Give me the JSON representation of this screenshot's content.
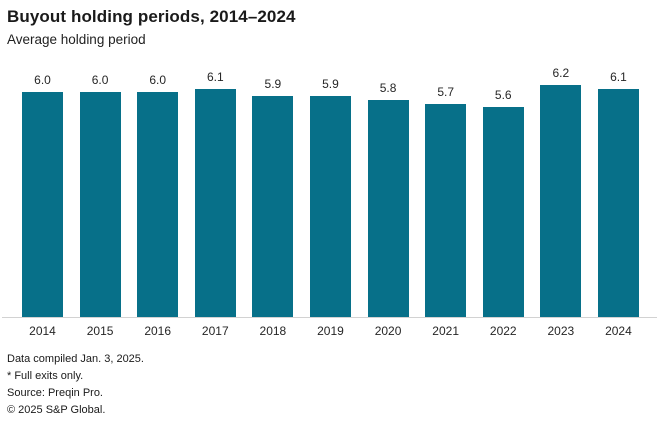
{
  "header": {
    "title": "Buyout holding periods, 2014–2024",
    "subtitle": "Average holding period"
  },
  "chart_data": {
    "type": "bar",
    "title": "Buyout holding periods, 2014–2024",
    "subtitle": "Average holding period",
    "categories": [
      "2014",
      "2015",
      "2016",
      "2017",
      "2018",
      "2019",
      "2020",
      "2021",
      "2022",
      "2023",
      "2024"
    ],
    "values": [
      6.0,
      6.0,
      6.0,
      6.1,
      5.9,
      5.9,
      5.8,
      5.7,
      5.6,
      6.2,
      6.1
    ],
    "xlabel": "",
    "ylabel": "",
    "ylim": [
      0,
      6.2
    ],
    "grid": false,
    "legend": "none",
    "value_labels_shown": true,
    "bar_color": "#077089",
    "axis_line_color": "#d2d2d2"
  },
  "footer": {
    "lines": [
      "Data compiled Jan. 3, 2025.",
      "* Full exits only.",
      "Source: Preqin Pro.",
      "© 2025 S&P Global."
    ]
  }
}
